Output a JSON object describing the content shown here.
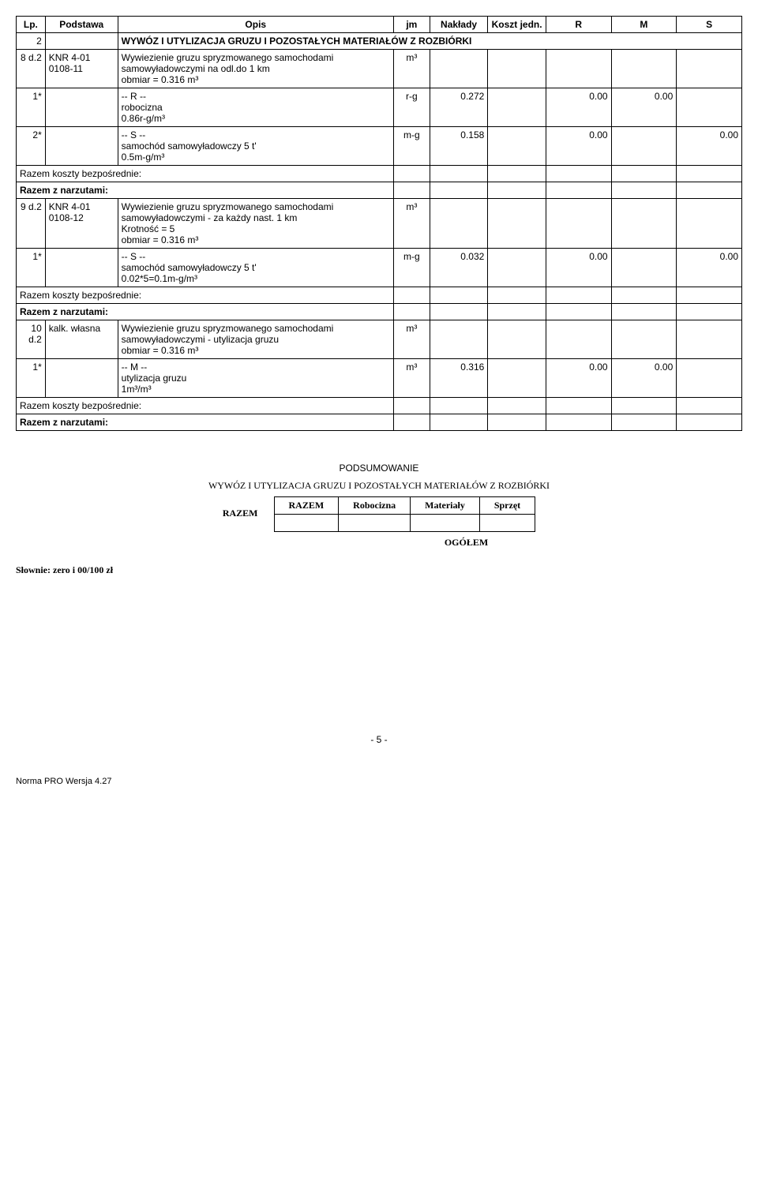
{
  "table": {
    "headers": {
      "lp": "Lp.",
      "podstawa": "Podstawa",
      "opis": "Opis",
      "jm": "jm",
      "naklady": "Nakłady",
      "koszt": "Koszt jedn.",
      "r": "R",
      "m": "M",
      "s": "S"
    },
    "section": {
      "num": "2",
      "title": "WYWÓZ I UTYLIZACJA GRUZU I POZOSTAŁYCH MATERIAŁÓW Z ROZBIÓRKI"
    },
    "row8": {
      "lp": "8 d.2",
      "podstawa": "KNR 4-01 0108-11",
      "opis": "Wywiezienie gruzu spryzmowanego samochodami samowyładowczymi na odl.do 1 km\nobmiar = 0.316 m³",
      "jm": "m³"
    },
    "row8_r": {
      "lp": "1*",
      "opis": "-- R --\nrobocizna\n0.86r-g/m³",
      "jm": "r-g",
      "naklady": "0.272",
      "r": "0.00",
      "m": "0.00"
    },
    "row8_s": {
      "lp": "2*",
      "opis": "-- S --\nsamochód samowyładowczy 5 t'\n0.5m-g/m³",
      "jm": "m-g",
      "naklady": "0.158",
      "r": "0.00",
      "s": "0.00"
    },
    "razem1": "Razem koszty bezpośrednie:",
    "razem1n": "Razem z narzutami:",
    "row9": {
      "lp": "9 d.2",
      "podstawa": "KNR 4-01 0108-12",
      "opis": "Wywiezienie gruzu spryzmowanego samochodami samowyładowczymi - za każdy nast. 1 km\nKrotność = 5\nobmiar = 0.316 m³",
      "jm": "m³"
    },
    "row9_s": {
      "lp": "1*",
      "opis": "-- S --\nsamochód samowyładowczy 5 t'\n0.02*5=0.1m-g/m³",
      "jm": "m-g",
      "naklady": "0.032",
      "r": "0.00",
      "s": "0.00"
    },
    "razem2": "Razem koszty bezpośrednie:",
    "razem2n": "Razem z narzutami:",
    "row10": {
      "lp": "10 d.2",
      "podstawa": "kalk. własna",
      "opis": "Wywiezienie gruzu spryzmowanego samochodami samowyładowczymi - utylizacja gruzu\nobmiar = 0.316 m³",
      "jm": "m³"
    },
    "row10_m": {
      "lp": "1*",
      "opis": "-- M --\nutylizacja gruzu\n1m³/m³",
      "jm": "m³",
      "naklady": "0.316",
      "r": "0.00",
      "m": "0.00"
    },
    "razem3": "Razem koszty bezpośrednie:",
    "razem3n": "Razem z narzutami:"
  },
  "summary": {
    "title": "PODSUMOWANIE",
    "subtitle": "WYWÓZ I UTYLIZACJA GRUZU I POZOSTAŁYCH MATERIAŁÓW Z ROZBIÓRKI",
    "cols": {
      "razem": "RAZEM",
      "rob": "Robocizna",
      "mat": "Materiały",
      "spr": "Sprzęt"
    },
    "razem_label": "RAZEM",
    "ogolem": "OGÓŁEM",
    "slownie": "Słownie:  zero i 00/100 zł"
  },
  "page": "- 5 -",
  "footer": "Norma PRO Wersja 4.27"
}
